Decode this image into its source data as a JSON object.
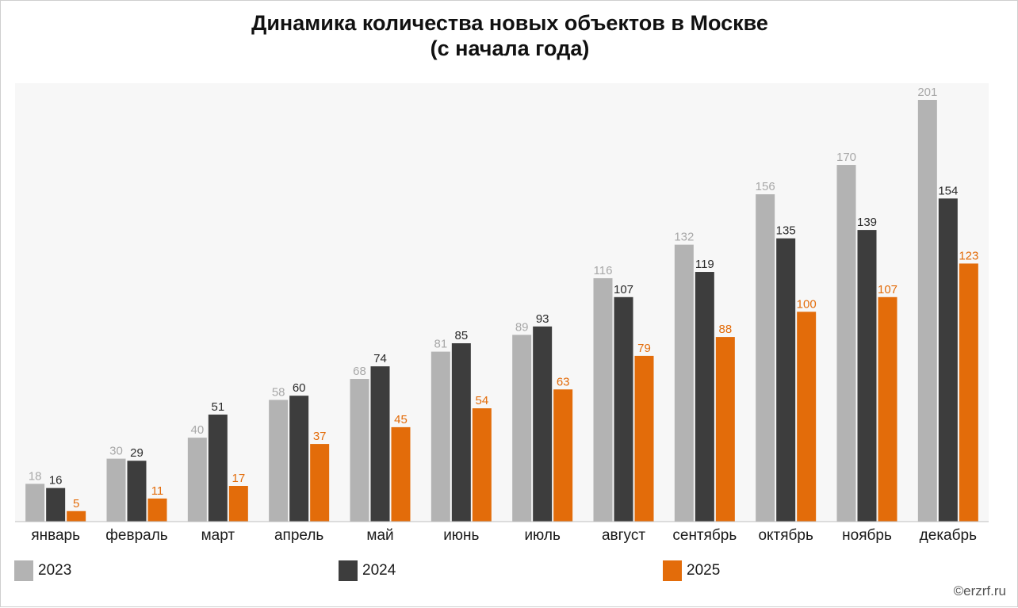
{
  "title_line1": "Динамика количества новых объектов в Москве",
  "title_line2": "(с начала года)",
  "source": "©erzrf.ru",
  "chart_data": {
    "type": "bar",
    "categories": [
      "январь",
      "февраль",
      "март",
      "апрель",
      "май",
      "июнь",
      "июль",
      "август",
      "сентябрь",
      "октябрь",
      "ноябрь",
      "декабрь"
    ],
    "series": [
      {
        "name": "2023",
        "color": "#b3b3b3",
        "label_color": "#a8a8a8",
        "values": [
          18,
          30,
          40,
          58,
          68,
          81,
          89,
          116,
          132,
          156,
          170,
          201
        ]
      },
      {
        "name": "2024",
        "color": "#3d3d3d",
        "label_color": "#2a2a2a",
        "values": [
          16,
          29,
          51,
          60,
          74,
          85,
          93,
          107,
          119,
          135,
          139,
          154
        ]
      },
      {
        "name": "2025",
        "color": "#e36c0a",
        "label_color": "#e36c0a",
        "values": [
          5,
          11,
          17,
          37,
          45,
          54,
          63,
          79,
          88,
          100,
          107,
          123
        ]
      }
    ],
    "ylim": [
      0,
      210
    ],
    "grid": false,
    "legend_position": "bottom"
  }
}
